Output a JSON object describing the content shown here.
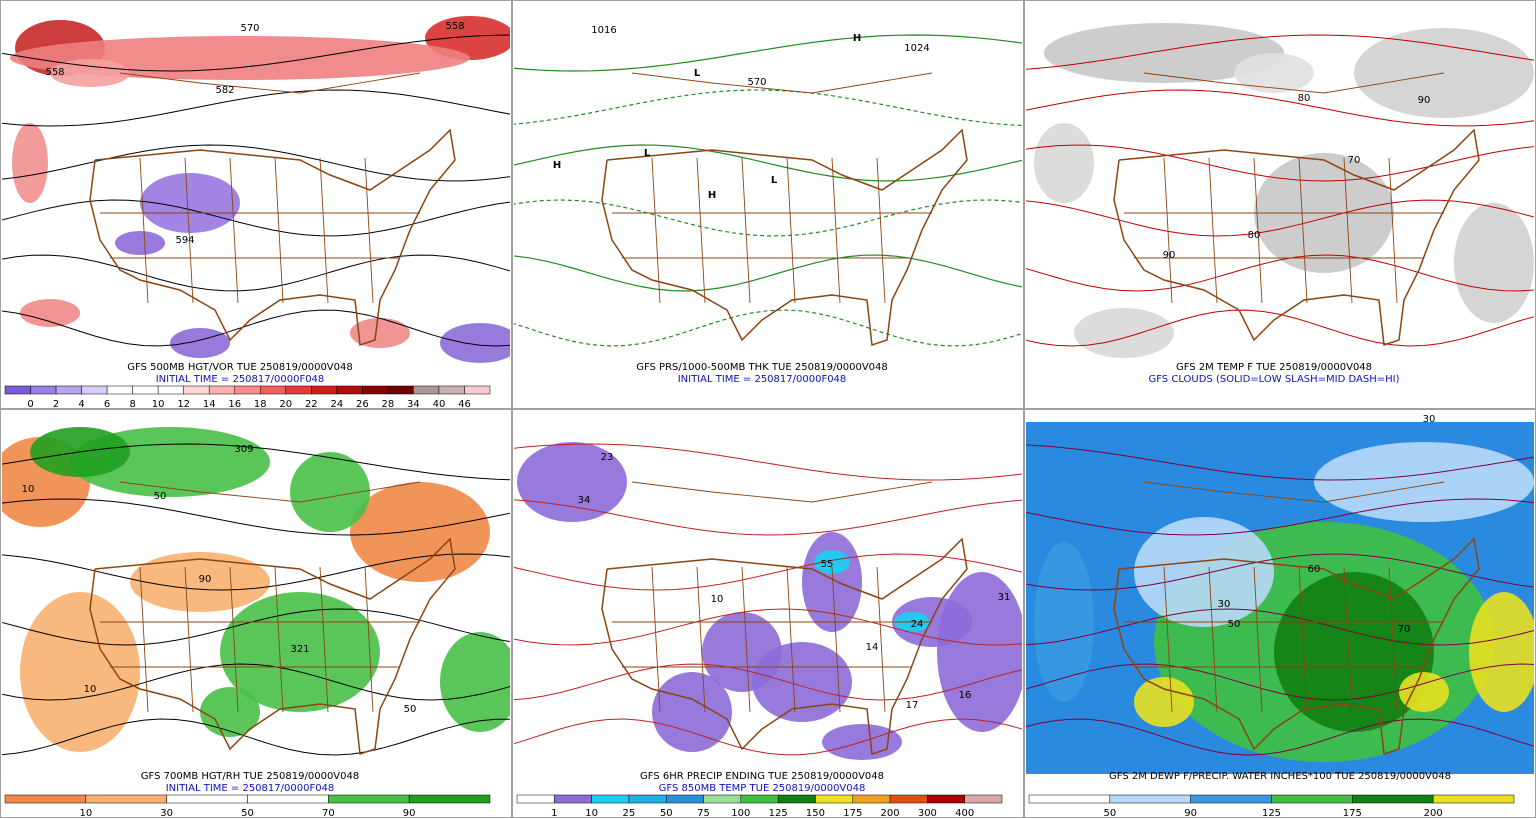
{
  "panels": [
    {
      "caption": [
        "GFS 500MB HGT/VOR TUE 250819/0000V048",
        "INITIAL TIME = 250817/0000F048"
      ],
      "colorbar": {
        "labels": [
          "0",
          "2",
          "4",
          "6",
          "8",
          "10",
          "12",
          "14",
          "16",
          "18",
          "20",
          "22",
          "24",
          "26",
          "28",
          "34",
          "40",
          "46"
        ],
        "colors": [
          "#7b5cd6",
          "#9b7ee6",
          "#b9a4f0",
          "#d8cbf7",
          "#ffffff",
          "#ffffff",
          "#ffffff",
          "#ffd6d6",
          "#ffb0b0",
          "#ff8888",
          "#f46060",
          "#e83838",
          "#d01c1c",
          "#b40a0a",
          "#8c0000",
          "#700000",
          "#a89898",
          "#c8b0b0",
          "#f8c8d0"
        ]
      },
      "map_labels": [
        "570",
        "558",
        "582",
        "594",
        "558"
      ]
    },
    {
      "caption": [
        "GFS PRS/1000-500MB THK TUE 250819/0000V048",
        "INITIAL TIME = 250817/0000F048"
      ],
      "map_labels": [
        "1016",
        "1024",
        "570",
        "H",
        "H",
        "L",
        "L",
        "L",
        "H"
      ]
    },
    {
      "caption": [
        "GFS 2M TEMP F TUE 250819/0000V048",
        "GFS CLOUDS (SOLID=LOW SLASH=MID DASH=HI)"
      ],
      "map_labels": [
        "80",
        "90",
        "70",
        "80",
        "90"
      ]
    },
    {
      "caption": [
        "GFS 700MB HGT/RH TUE 250819/0000V048",
        "INITIAL TIME = 250817/0000F048"
      ],
      "colorbar": {
        "labels": [
          "10",
          "30",
          "50",
          "70",
          "90"
        ],
        "colors": [
          "#f08848",
          "#f8b070",
          "#ffffff",
          "#ffffff",
          "#48c048",
          "#20a020"
        ]
      },
      "map_labels": [
        "10",
        "50",
        "90",
        "309",
        "321",
        "50",
        "10"
      ]
    },
    {
      "caption": [
        "GFS 6HR PRECIP ENDING TUE 250819/0000V048",
        "GFS 850MB TEMP TUE 250819/0000V048"
      ],
      "colorbar": {
        "labels": [
          "1",
          "10",
          "25",
          "50",
          "75",
          "100",
          "125",
          "150",
          "175",
          "200",
          "300",
          "400"
        ],
        "colors": [
          "#ffffff",
          "#8c6cd8",
          "#18d0f0",
          "#20b0e8",
          "#2890d8",
          "#98e098",
          "#40c040",
          "#108010",
          "#f0e020",
          "#f0a020",
          "#e05010",
          "#b00000",
          "#d8a8a8"
        ]
      },
      "map_labels": [
        "23",
        "34",
        "10",
        "55",
        "14",
        "16",
        "17",
        "24",
        "31"
      ]
    },
    {
      "caption": [
        "GFS 2M DEWP F/PRECIP. WATER INCHES*100 TUE 250819/0000V048"
      ],
      "colorbar": {
        "labels": [
          "50",
          "90",
          "125",
          "175",
          "200"
        ],
        "colors": [
          "#ffffff",
          "#b8d8f8",
          "#3898e0",
          "#40c040",
          "#108010",
          "#e8e020"
        ]
      },
      "map_labels": [
        "30",
        "50",
        "60",
        "70",
        "30"
      ]
    }
  ]
}
